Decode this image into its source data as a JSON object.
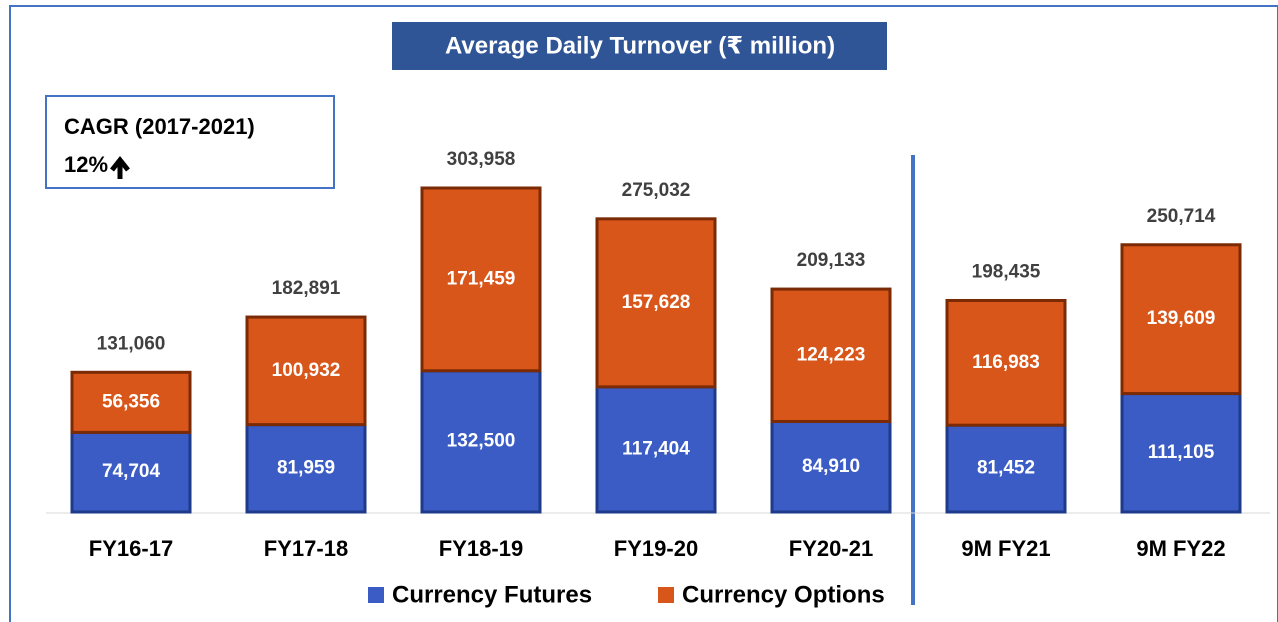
{
  "chart_data": {
    "type": "stacked_bar",
    "title": "Average Daily Turnover (₹  million)",
    "categories": [
      "FY16-17",
      "FY17-18",
      "FY18-19",
      "FY19-20",
      "FY20-21",
      "9M FY21",
      "9M FY22"
    ],
    "series": [
      {
        "name": "Currency Futures",
        "color": "#3a5cc4",
        "values": [
          74704,
          81959,
          132500,
          117404,
          84910,
          81452,
          111105
        ],
        "value_labels": [
          "74,704",
          "81,959",
          "132,500",
          "117,404",
          "84,910",
          "81,452",
          "111,105"
        ]
      },
      {
        "name": "Currency Options",
        "color": "#d9561a",
        "values": [
          56356,
          100932,
          171459,
          157628,
          124223,
          116983,
          139609
        ],
        "value_labels": [
          "56,356",
          "100,932",
          "171,459",
          "157,628",
          "124,223",
          "116,983",
          "139,609"
        ]
      }
    ],
    "totals": [
      131060,
      182891,
      303958,
      275032,
      209133,
      198435,
      250714
    ],
    "total_labels": [
      "131,060",
      "182,891",
      "303,958",
      "275,032",
      "209,133",
      "198,435",
      "250,714"
    ],
    "annotations": [
      "CAGR (2017-2021)",
      "12%"
    ]
  }
}
